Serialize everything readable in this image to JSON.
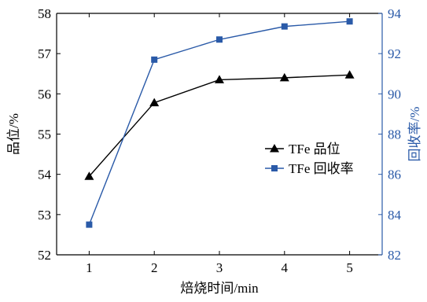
{
  "chart_data": {
    "type": "line",
    "x": [
      1,
      2,
      3,
      4,
      5
    ],
    "xlabel": "焙烧时间/min",
    "xlim": [
      0.5,
      5.5
    ],
    "xticks": [
      1,
      2,
      3,
      4,
      5
    ],
    "ylabel_left": "品位/%",
    "ylim_left": [
      52,
      58
    ],
    "yticks_left": [
      52,
      53,
      54,
      55,
      56,
      57,
      58
    ],
    "ylabel_right": "回收率/%",
    "ylim_right": [
      82,
      94
    ],
    "yticks_right": [
      82,
      84,
      86,
      88,
      90,
      92,
      94
    ],
    "legend_position": "center-right",
    "grid": false,
    "series": [
      {
        "name": "TFe 品位",
        "axis": "left",
        "marker": "triangle",
        "color": "#000000",
        "values": [
          53.95,
          55.78,
          56.35,
          56.4,
          56.47
        ]
      },
      {
        "name": "TFe 回收率",
        "axis": "right",
        "marker": "square",
        "color": "#2a5aa8",
        "values": [
          83.5,
          91.7,
          92.7,
          93.35,
          93.6
        ]
      }
    ],
    "colors": {
      "left_axis": "#000000",
      "right_axis": "#2a5aa8"
    }
  }
}
